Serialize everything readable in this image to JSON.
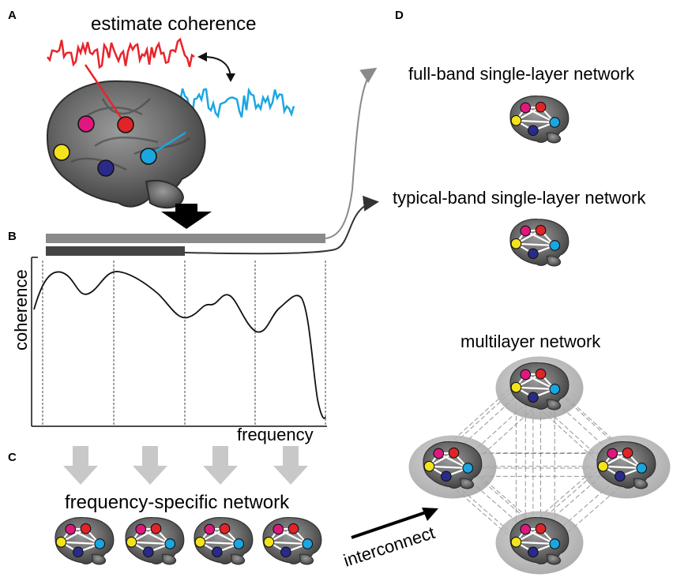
{
  "panels": {
    "a": {
      "letter": "A",
      "title": "estimate coherence"
    },
    "b": {
      "letter": "B",
      "ylabel": "coherence",
      "xlabel": "frequency"
    },
    "c": {
      "letter": "C",
      "title": "frequency-specific network",
      "arrow_label": "interconnect"
    },
    "d": {
      "letter": "D",
      "full_band_title": "full-band single-layer network",
      "typical_band_title": "typical-band single-layer network",
      "multilayer_title": "multilayer network"
    }
  },
  "colors": {
    "signal_red": "#e8242b",
    "signal_blue": "#1ba7e3",
    "node_magenta": "#e0187e",
    "node_red": "#e02428",
    "node_yellow": "#f4e31b",
    "node_navy": "#2a2a8a",
    "node_cyan": "#1aa6df",
    "band_full": "#8a8a8a",
    "band_typical": "#444444",
    "down_arrow": "#c8c8c8"
  }
}
